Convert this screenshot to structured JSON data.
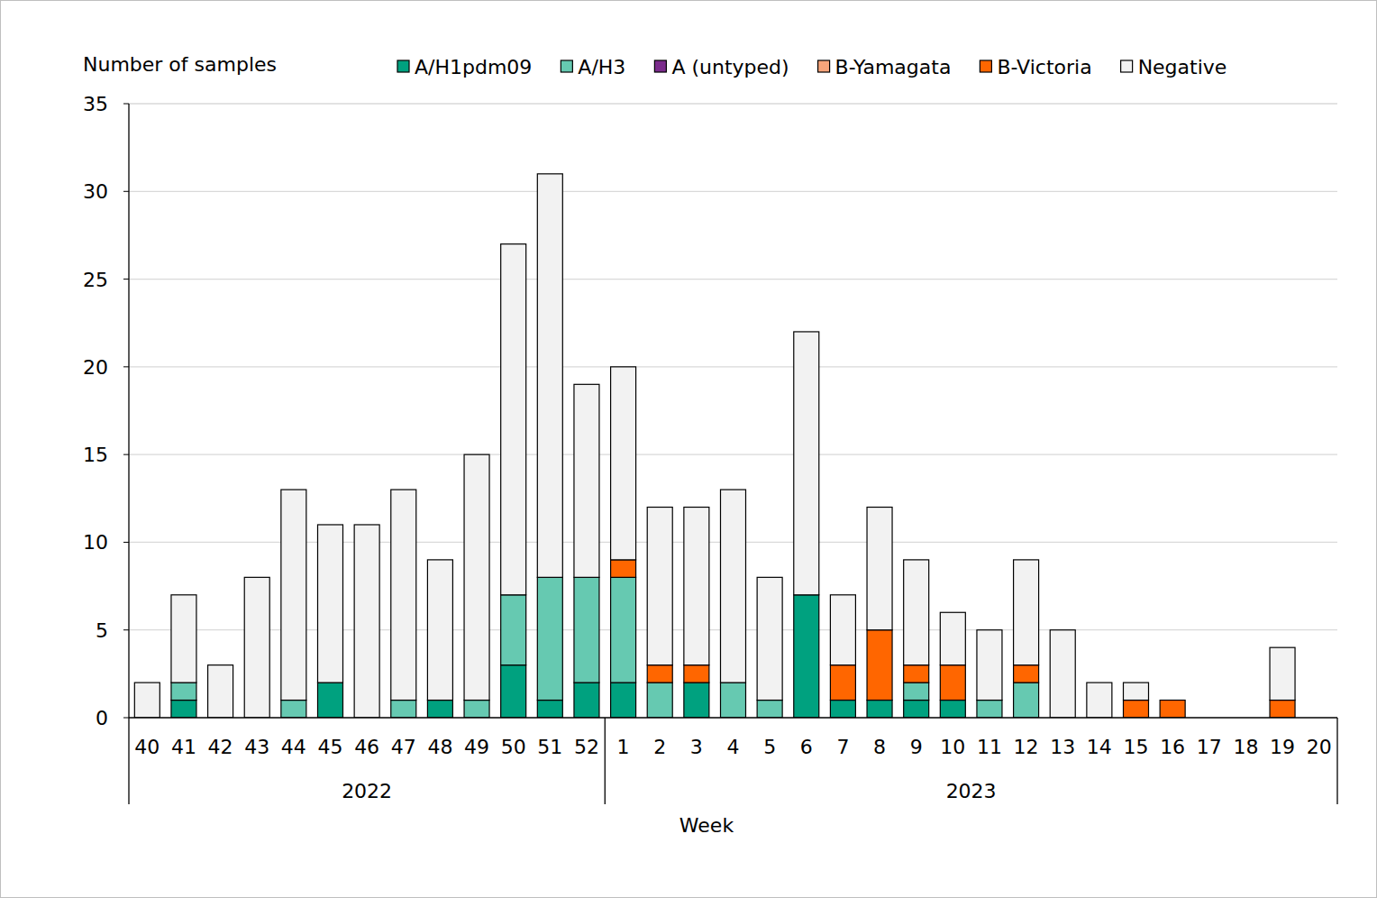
{
  "chart_data": {
    "type": "bar",
    "stacked": true,
    "grid": true,
    "legend": "top",
    "y_label": "Number of samples",
    "x_label": "Week",
    "x_groups": [
      {
        "label": "2022",
        "count": 13
      },
      {
        "label": "2023",
        "count": 20
      }
    ],
    "categories": [
      "40",
      "41",
      "42",
      "43",
      "44",
      "45",
      "46",
      "47",
      "48",
      "49",
      "50",
      "51",
      "52",
      "1",
      "2",
      "3",
      "4",
      "5",
      "6",
      "7",
      "8",
      "9",
      "10",
      "11",
      "12",
      "13",
      "14",
      "15",
      "16",
      "17",
      "18",
      "19",
      "20"
    ],
    "ylim": [
      0,
      35
    ],
    "yticks": [
      0,
      5,
      10,
      15,
      20,
      25,
      30,
      35
    ],
    "series": [
      {
        "name": "A/H1pdm09",
        "color": "#00a17f",
        "values": [
          0,
          1,
          0,
          0,
          0,
          2,
          0,
          0,
          1,
          0,
          3,
          1,
          2,
          2,
          0,
          2,
          0,
          0,
          7,
          1,
          1,
          1,
          1,
          0,
          0,
          0,
          0,
          0,
          0,
          0,
          0,
          0,
          0
        ]
      },
      {
        "name": "A/H3",
        "color": "#66c9b1",
        "values": [
          0,
          1,
          0,
          0,
          1,
          0,
          0,
          1,
          0,
          1,
          4,
          7,
          6,
          6,
          2,
          0,
          2,
          1,
          0,
          0,
          0,
          1,
          0,
          1,
          2,
          0,
          0,
          0,
          0,
          0,
          0,
          0,
          0
        ]
      },
      {
        "name": "A (untyped)",
        "color": "#7b2c8c",
        "values": [
          0,
          0,
          0,
          0,
          0,
          0,
          0,
          0,
          0,
          0,
          0,
          0,
          0,
          0,
          0,
          0,
          0,
          0,
          0,
          0,
          0,
          0,
          0,
          0,
          0,
          0,
          0,
          0,
          0,
          0,
          0,
          0,
          0
        ]
      },
      {
        "name": "B-Yamagata",
        "color": "#f7a57b",
        "values": [
          0,
          0,
          0,
          0,
          0,
          0,
          0,
          0,
          0,
          0,
          0,
          0,
          0,
          0,
          0,
          0,
          0,
          0,
          0,
          0,
          0,
          0,
          0,
          0,
          0,
          0,
          0,
          0,
          0,
          0,
          0,
          0,
          0
        ]
      },
      {
        "name": "B-Victoria",
        "color": "#ff6600",
        "values": [
          0,
          0,
          0,
          0,
          0,
          0,
          0,
          0,
          0,
          0,
          0,
          0,
          0,
          1,
          1,
          1,
          0,
          0,
          0,
          2,
          4,
          1,
          2,
          0,
          1,
          0,
          0,
          1,
          1,
          0,
          0,
          1,
          0
        ]
      },
      {
        "name": "Negative",
        "color": "#f2f2f2",
        "values": [
          2,
          5,
          3,
          8,
          12,
          9,
          11,
          12,
          8,
          14,
          20,
          23,
          11,
          11,
          9,
          9,
          11,
          7,
          15,
          4,
          7,
          6,
          3,
          4,
          6,
          5,
          2,
          1,
          0,
          0,
          0,
          3,
          0
        ]
      }
    ]
  }
}
